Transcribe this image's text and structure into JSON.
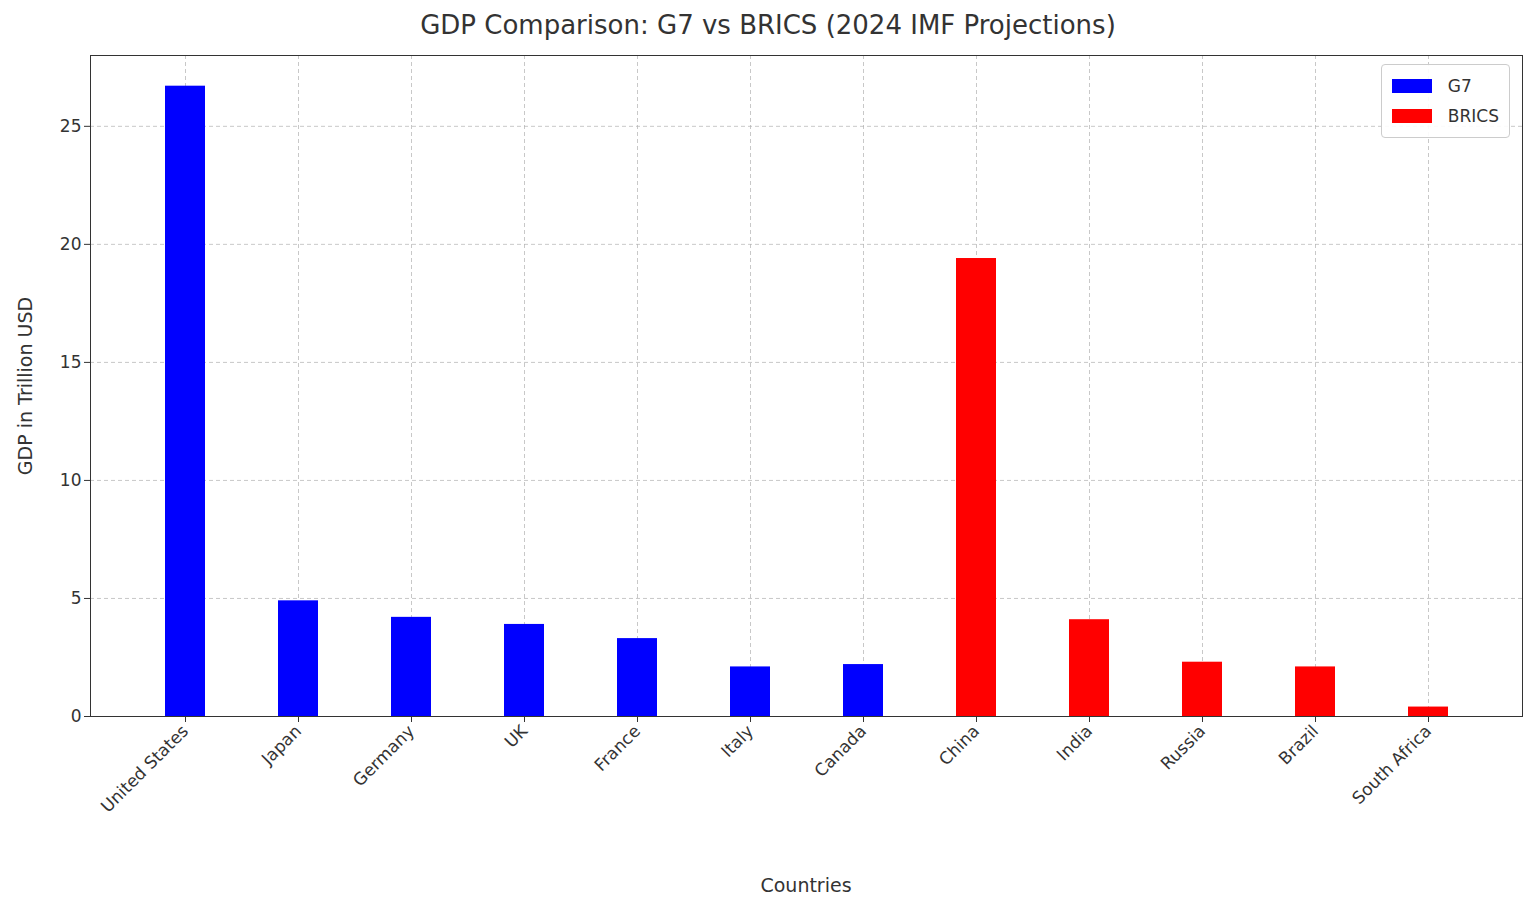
{
  "chart_data": {
    "type": "bar",
    "title": "GDP Comparison: G7 vs BRICS (2024 IMF Projections)",
    "x_label": "Countries",
    "y_label": "GDP in Trillion USD",
    "categories": [
      "United States",
      "Japan",
      "Germany",
      "UK",
      "France",
      "Italy",
      "Canada",
      "China",
      "India",
      "Russia",
      "Brazil",
      "South Africa"
    ],
    "series": [
      {
        "name": "G7",
        "color": "#0000ff",
        "values": [
          26.7,
          4.9,
          4.2,
          3.9,
          3.3,
          2.1,
          2.2,
          null,
          null,
          null,
          null,
          null
        ]
      },
      {
        "name": "BRICS",
        "color": "#ff0000",
        "values": [
          null,
          null,
          null,
          null,
          null,
          null,
          null,
          19.4,
          4.1,
          2.3,
          2.1,
          0.4
        ]
      }
    ],
    "ylim": [
      0,
      28
    ],
    "yticks": [
      0,
      5,
      10,
      15,
      20,
      25
    ],
    "grid": true,
    "legend": "upper right"
  }
}
